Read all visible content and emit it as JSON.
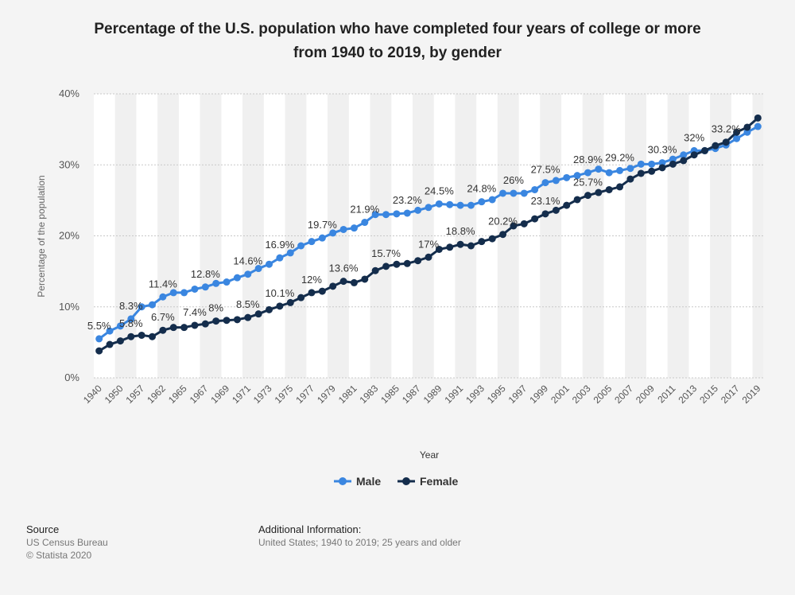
{
  "chart_data": {
    "type": "line",
    "title": "Percentage of the U.S. population who have completed four years of college or more",
    "subtitle": "from 1940 to 2019, by gender",
    "x_label": "Year",
    "y_label": "Percentage of the population",
    "categories": [
      "1940",
      null,
      "1950",
      null,
      "1957",
      null,
      "1962",
      null,
      "1965",
      null,
      "1967",
      null,
      "1969",
      null,
      "1971",
      null,
      "1973",
      null,
      "1975",
      null,
      "1977",
      null,
      "1979",
      null,
      "1981",
      null,
      "1983",
      null,
      "1985",
      null,
      "1987",
      null,
      "1989",
      null,
      "1991",
      null,
      "1993",
      null,
      "1995",
      null,
      "1997",
      null,
      "1999",
      null,
      "2001",
      null,
      "2003",
      null,
      "2005",
      null,
      "2007",
      null,
      "2009",
      null,
      "2011",
      null,
      "2013",
      null,
      "2015",
      null,
      "2017",
      null,
      "2019"
    ],
    "series": [
      {
        "name": "Male",
        "color": "#3a86e0",
        "values": [
          5.5,
          6.6,
          7.3,
          8.3,
          10.0,
          10.3,
          11.4,
          12.0,
          12.0,
          12.5,
          12.8,
          13.3,
          13.5,
          14.1,
          14.6,
          15.4,
          16.0,
          16.9,
          17.6,
          18.6,
          19.2,
          19.7,
          20.4,
          20.9,
          21.1,
          21.9,
          23.0,
          23.0,
          23.1,
          23.2,
          23.6,
          24.0,
          24.5,
          24.4,
          24.3,
          24.3,
          24.8,
          25.1,
          26.0,
          26.0,
          26.0,
          26.5,
          27.5,
          27.8,
          28.2,
          28.5,
          28.9,
          29.4,
          28.9,
          29.2,
          29.5,
          30.1,
          30.1,
          30.3,
          30.8,
          31.4,
          32.0,
          32.0,
          32.3,
          32.8,
          33.7,
          34.6,
          35.4
        ],
        "value_labels": [
          "5.5%",
          null,
          null,
          "8.3%",
          null,
          null,
          "11.4%",
          null,
          null,
          null,
          "12.8%",
          null,
          null,
          null,
          "14.6%",
          null,
          null,
          "16.9%",
          null,
          null,
          null,
          "19.7%",
          null,
          null,
          null,
          "21.9%",
          null,
          null,
          null,
          "23.2%",
          null,
          null,
          "24.5%",
          null,
          null,
          null,
          "24.8%",
          null,
          null,
          "26%",
          null,
          null,
          "27.5%",
          null,
          null,
          null,
          "28.9%",
          null,
          null,
          "29.2%",
          null,
          null,
          null,
          "30.3%",
          null,
          null,
          "32%",
          null,
          null,
          null,
          null,
          null,
          null
        ]
      },
      {
        "name": "Female",
        "color": "#142d4c",
        "values": [
          3.8,
          4.7,
          5.2,
          5.8,
          6.0,
          5.8,
          6.7,
          7.1,
          7.1,
          7.4,
          7.6,
          8.0,
          8.1,
          8.2,
          8.5,
          9.0,
          9.6,
          10.1,
          10.6,
          11.3,
          12.0,
          12.2,
          12.9,
          13.6,
          13.4,
          13.9,
          15.1,
          15.7,
          16.0,
          16.1,
          16.5,
          17.0,
          18.1,
          18.4,
          18.8,
          18.6,
          19.2,
          19.6,
          20.2,
          21.4,
          21.7,
          22.4,
          23.1,
          23.6,
          24.3,
          25.1,
          25.7,
          26.1,
          26.5,
          26.9,
          28.0,
          28.8,
          29.1,
          29.6,
          30.1,
          30.6,
          31.4,
          32.0,
          32.7,
          33.2,
          34.6,
          35.3,
          36.6
        ],
        "value_labels": [
          null,
          null,
          null,
          "5.8%",
          null,
          null,
          "6.7%",
          null,
          null,
          "7.4%",
          null,
          "8%",
          null,
          null,
          "8.5%",
          null,
          null,
          "10.1%",
          null,
          null,
          "12%",
          null,
          null,
          "13.6%",
          null,
          null,
          null,
          "15.7%",
          null,
          null,
          null,
          "17%",
          null,
          null,
          "18.8%",
          null,
          null,
          null,
          "20.2%",
          null,
          null,
          null,
          "23.1%",
          null,
          null,
          null,
          "25.7%",
          null,
          null,
          null,
          null,
          null,
          null,
          null,
          null,
          null,
          null,
          null,
          null,
          "33.2%",
          null,
          null,
          null
        ]
      }
    ],
    "ylim": [
      0,
      40
    ],
    "yticks": [
      {
        "value": 0,
        "label": "0%"
      },
      {
        "value": 10,
        "label": "10%"
      },
      {
        "value": 20,
        "label": "20%"
      },
      {
        "value": 30,
        "label": "30%"
      },
      {
        "value": 40,
        "label": "40%"
      }
    ],
    "grid": true,
    "legend": "bottom"
  },
  "footer": {
    "source_title": "Source",
    "source": "US Census Bureau",
    "copyright": "© Statista 2020",
    "info_title": "Additional Information:",
    "info": "United States; 1940 to 2019; 25 years and older"
  }
}
